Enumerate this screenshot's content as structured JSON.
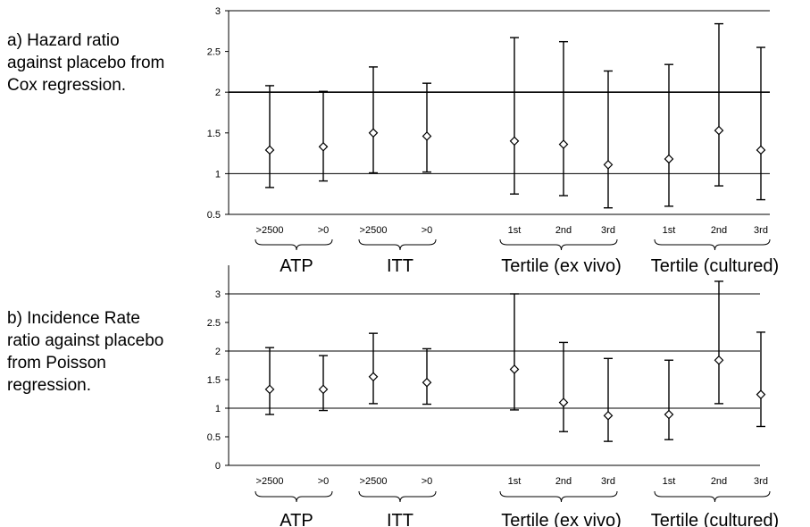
{
  "chart_data": [
    {
      "type": "scatter",
      "title": "a) Hazard ratio\nagainst placebo from\nCox regression.",
      "ylim": [
        0.5,
        3
      ],
      "yticks": [
        "0.5",
        "1",
        "1.5",
        "2",
        "2.5",
        "3"
      ],
      "gridlines": [
        1,
        2,
        3
      ],
      "groups": [
        {
          "label": "ATP",
          "categories": [
            ">2500",
            ">0"
          ]
        },
        {
          "label": "ITT",
          "categories": [
            ">2500",
            ">0"
          ]
        },
        {
          "label": "Tertile (ex vivo)",
          "categories": [
            "1st",
            "2nd",
            "3rd"
          ]
        },
        {
          "label": "Tertile (cultured)",
          "categories": [
            "1st",
            "2nd",
            "3rd"
          ]
        }
      ],
      "points": [
        {
          "y": 1.29,
          "low": 0.83,
          "high": 2.08
        },
        {
          "y": 1.33,
          "low": 0.91,
          "high": 2.01
        },
        {
          "y": 1.5,
          "low": 1.01,
          "high": 2.31
        },
        {
          "y": 1.46,
          "low": 1.02,
          "high": 2.11
        },
        {
          "y": 1.4,
          "low": 0.75,
          "high": 2.67
        },
        {
          "y": 1.36,
          "low": 0.73,
          "high": 2.62
        },
        {
          "y": 1.11,
          "low": 0.58,
          "high": 2.26
        },
        {
          "y": 1.18,
          "low": 0.6,
          "high": 2.34
        },
        {
          "y": 1.53,
          "low": 0.85,
          "high": 2.84
        },
        {
          "y": 1.29,
          "low": 0.68,
          "high": 2.55
        }
      ]
    },
    {
      "type": "scatter",
      "title": "b) Incidence Rate\nratio against placebo\nfrom Poisson\nregression.",
      "ylim": [
        0,
        3.5
      ],
      "yticks": [
        "0",
        "0.5",
        "1",
        "1.5",
        "2",
        "2.5",
        "3"
      ],
      "gridlines": [
        1,
        2,
        3
      ],
      "groups": [
        {
          "label": "ATP",
          "categories": [
            ">2500",
            ">0"
          ]
        },
        {
          "label": "ITT",
          "categories": [
            ">2500",
            ">0"
          ]
        },
        {
          "label": "Tertile (ex vivo)",
          "categories": [
            "1st",
            "2nd",
            "3rd"
          ]
        },
        {
          "label": "Tertile (cultured)",
          "categories": [
            "1st",
            "2nd",
            "3rd"
          ]
        }
      ],
      "points": [
        {
          "y": 1.33,
          "low": 0.89,
          "high": 2.06
        },
        {
          "y": 1.33,
          "low": 0.96,
          "high": 1.92
        },
        {
          "y": 1.55,
          "low": 1.08,
          "high": 2.31
        },
        {
          "y": 1.45,
          "low": 1.07,
          "high": 2.04
        },
        {
          "y": 1.68,
          "low": 0.97,
          "high": 3.0
        },
        {
          "y": 1.1,
          "low": 0.59,
          "high": 2.15
        },
        {
          "y": 0.87,
          "low": 0.42,
          "high": 1.87
        },
        {
          "y": 0.89,
          "low": 0.45,
          "high": 1.84
        },
        {
          "y": 1.84,
          "low": 1.08,
          "high": 3.22
        },
        {
          "y": 1.24,
          "low": 0.68,
          "high": 2.33
        }
      ]
    }
  ]
}
